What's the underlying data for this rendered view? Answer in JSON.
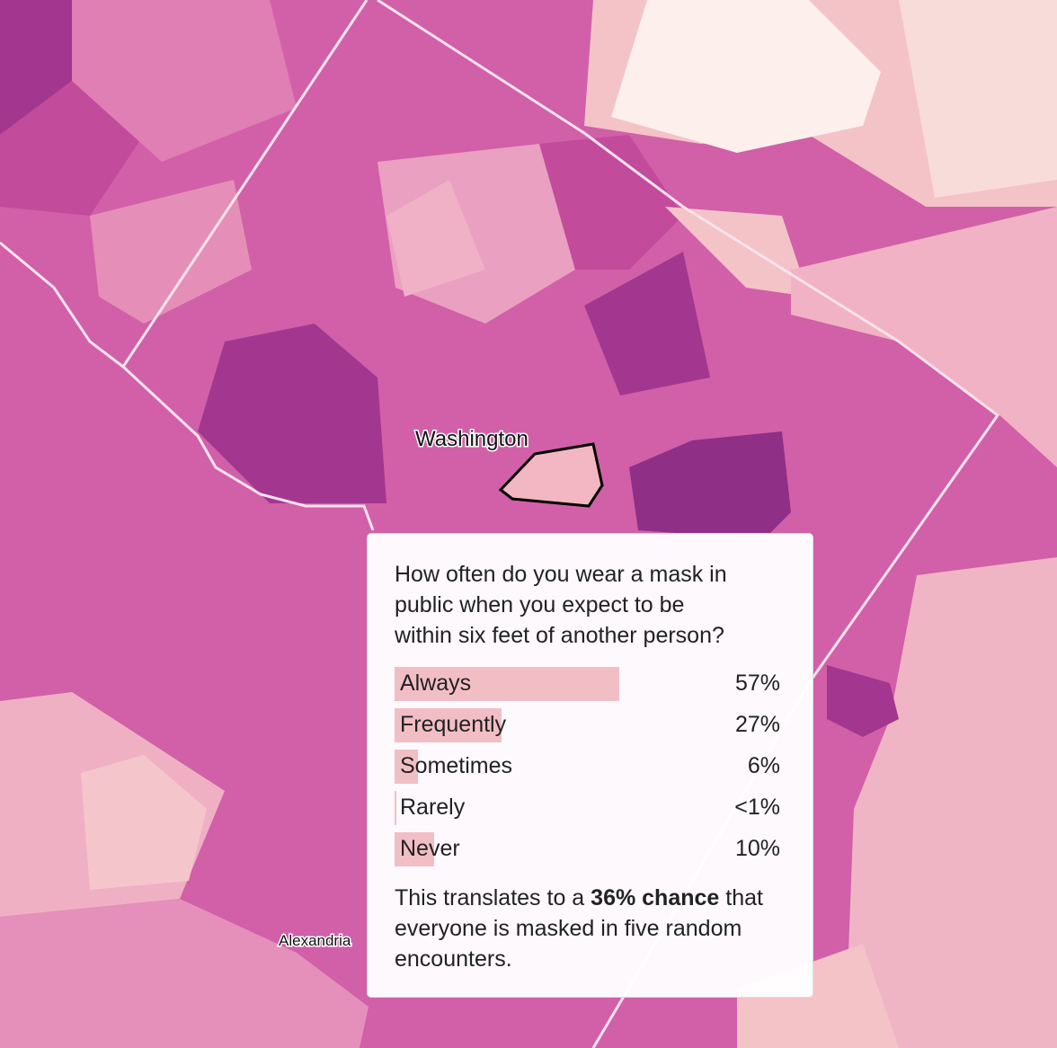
{
  "map": {
    "labels": [
      "Washington",
      "Alexandria"
    ]
  },
  "tooltip": {
    "question": [
      "How often do you wear a mask in",
      "public when you expect to be",
      "within six feet of another person?"
    ],
    "rows": [
      {
        "label": "Always",
        "value": 57,
        "value_label": "57%"
      },
      {
        "label": "Frequently",
        "value": 27,
        "value_label": "27%"
      },
      {
        "label": "Sometimes",
        "value": 6,
        "value_label": "6%"
      },
      {
        "label": "Rarely",
        "value": 0.5,
        "value_label": "<1%"
      },
      {
        "label": "Never",
        "value": 10,
        "value_label": "10%"
      }
    ],
    "summary": {
      "before": "This translates to a",
      "bold": "36% chance",
      "after": "that everyone is masked in five random encounters."
    }
  }
}
